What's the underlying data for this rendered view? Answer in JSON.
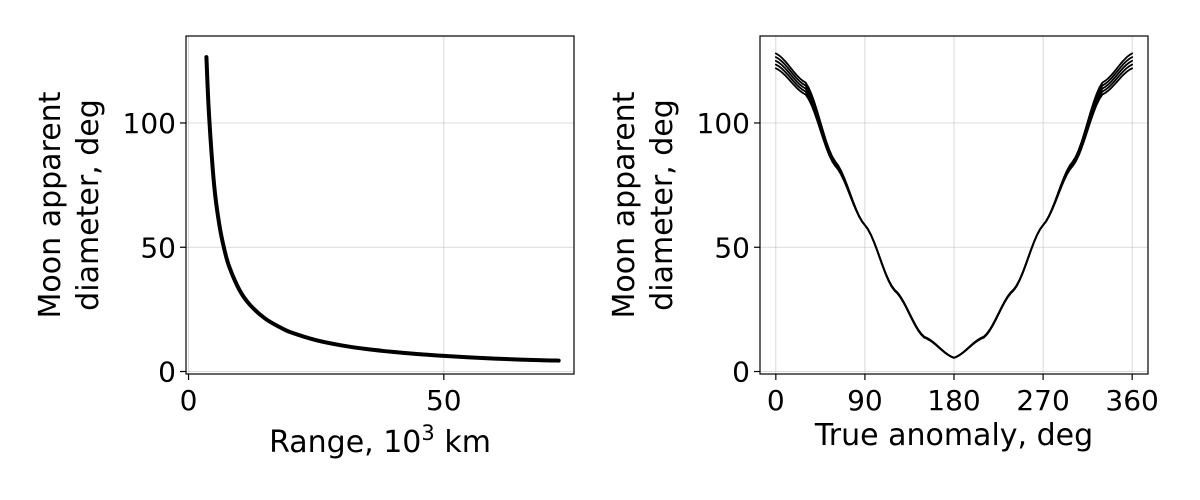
{
  "chart_data": [
    {
      "type": "line",
      "id": "left",
      "xlabel": "Range, 10",
      "xlabel_sup": "3",
      "xlabel_suffix": " km",
      "ylabel_lines": [
        "Moon apparent",
        "diameter, deg"
      ],
      "xlim": [
        -0.5,
        75.5
      ],
      "ylim": [
        -1,
        135
      ],
      "xticks": [
        0,
        50
      ],
      "yticks": [
        0,
        50,
        100
      ],
      "grid": true,
      "series": [
        {
          "x": [
            3.5,
            4,
            5,
            6,
            7,
            8,
            10,
            12,
            15,
            18,
            20,
            25,
            30,
            35,
            40,
            45,
            50,
            55,
            60,
            65,
            70,
            72.5
          ],
          "y": [
            126.5,
            103.7,
            75.2,
            59.4,
            49.2,
            42.0,
            32.7,
            26.9,
            21.3,
            17.7,
            15.8,
            12.6,
            10.5,
            9.0,
            7.9,
            7.0,
            6.3,
            5.7,
            5.2,
            4.8,
            4.5,
            4.4
          ]
        }
      ]
    },
    {
      "type": "line",
      "id": "right",
      "xlabel": "True anomaly, deg",
      "ylabel_lines": [
        "Moon apparent",
        "diameter, deg"
      ],
      "xlim": [
        -16,
        376
      ],
      "ylim": [
        -1,
        135
      ],
      "xticks": [
        0,
        90,
        180,
        270,
        360
      ],
      "yticks": [
        0,
        50,
        100
      ],
      "grid": true,
      "series": [
        {
          "x": [
            0,
            30,
            60,
            90,
            120,
            150,
            180,
            210,
            240,
            270,
            300,
            330,
            360
          ],
          "y": [
            128,
            116.3,
            84.5,
            58.9,
            32.5,
            13.6,
            5.5,
            13.6,
            32.5,
            58.9,
            84.5,
            116.3,
            128
          ]
        },
        {
          "x": [
            0,
            30,
            60,
            90,
            120,
            150,
            180,
            210,
            240,
            270,
            300,
            330,
            360
          ],
          "y": [
            126.5,
            115.1,
            84.1,
            58.9,
            32.6,
            13.7,
            5.5,
            13.7,
            32.6,
            58.9,
            84.1,
            115.1,
            126.5
          ]
        },
        {
          "x": [
            0,
            30,
            60,
            90,
            120,
            150,
            180,
            210,
            240,
            270,
            300,
            330,
            360
          ],
          "y": [
            125,
            113.9,
            83.6,
            58.9,
            32.7,
            13.8,
            5.5,
            13.8,
            32.7,
            58.9,
            83.6,
            113.9,
            125
          ]
        },
        {
          "x": [
            0,
            30,
            60,
            90,
            120,
            150,
            180,
            210,
            240,
            270,
            300,
            330,
            360
          ],
          "y": [
            123.5,
            112.7,
            83.1,
            58.9,
            32.8,
            13.9,
            5.5,
            13.9,
            32.8,
            58.9,
            83.1,
            112.7,
            123.5
          ]
        },
        {
          "x": [
            0,
            30,
            60,
            90,
            120,
            150,
            180,
            210,
            240,
            270,
            300,
            330,
            360
          ],
          "y": [
            122,
            111.5,
            82.7,
            58.9,
            32.9,
            14.0,
            5.5,
            14.0,
            32.9,
            58.9,
            82.7,
            111.5,
            122
          ]
        }
      ]
    }
  ]
}
